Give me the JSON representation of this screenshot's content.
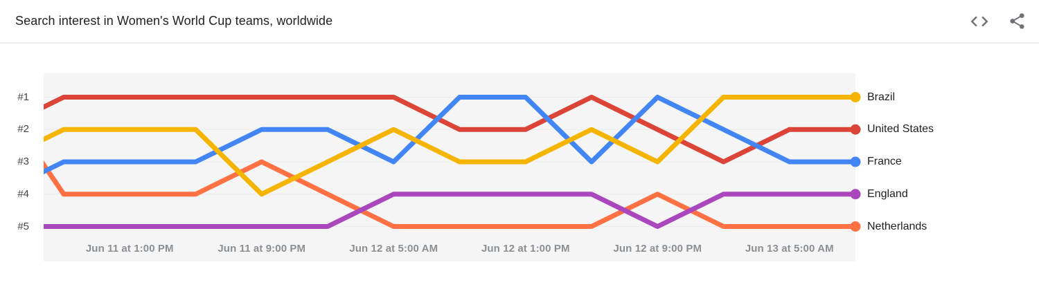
{
  "header": {
    "title": "Search interest in Women's World Cup teams, worldwide",
    "icons": [
      "code-icon",
      "share-icon"
    ]
  },
  "chart_data": {
    "type": "line",
    "subtype": "rank-bump",
    "title": "Search interest in Women's World Cup teams, worldwide",
    "ylabel": "rank",
    "ylim": [
      1,
      5
    ],
    "grid": true,
    "legend_position": "right",
    "rank_labels": [
      "#1",
      "#2",
      "#3",
      "#4",
      "#5"
    ],
    "x_tick_labels": [
      "Jun 11 at 1:00 PM",
      "Jun 11 at 9:00 PM",
      "Jun 12 at 5:00 AM",
      "Jun 12 at 1:00 PM",
      "Jun 12 at 9:00 PM",
      "Jun 13 at 5:00 AM"
    ],
    "x_tick_point_indices": [
      2,
      4,
      6,
      8,
      10,
      12
    ],
    "first_point_clipped_offscreen": true,
    "series": [
      {
        "name": "Brazil",
        "color": "#F4B400",
        "ranks": [
          3,
          2,
          2,
          2,
          4,
          3,
          2,
          3,
          3,
          2,
          3,
          1,
          1,
          1
        ]
      },
      {
        "name": "United States",
        "color": "#DB4437",
        "ranks": [
          2,
          1,
          1,
          1,
          1,
          1,
          1,
          2,
          2,
          1,
          2,
          3,
          2,
          2
        ]
      },
      {
        "name": "France",
        "color": "#4285F4",
        "ranks": [
          4,
          3,
          3,
          3,
          2,
          2,
          3,
          1,
          1,
          3,
          1,
          2,
          3,
          3
        ]
      },
      {
        "name": "England",
        "color": "#AB47BC",
        "ranks": [
          5,
          5,
          5,
          5,
          5,
          5,
          4,
          4,
          4,
          4,
          5,
          4,
          4,
          4
        ]
      },
      {
        "name": "Netherlands",
        "color": "#FF7043",
        "ranks": [
          1,
          4,
          4,
          4,
          3,
          4,
          5,
          5,
          5,
          5,
          4,
          5,
          5,
          5
        ]
      }
    ],
    "draw_order": [
      "Netherlands",
      "England",
      "United States",
      "France",
      "Brazil"
    ],
    "plot_bg_color": "#f5f5f5",
    "gridline_color": "#ececec"
  }
}
